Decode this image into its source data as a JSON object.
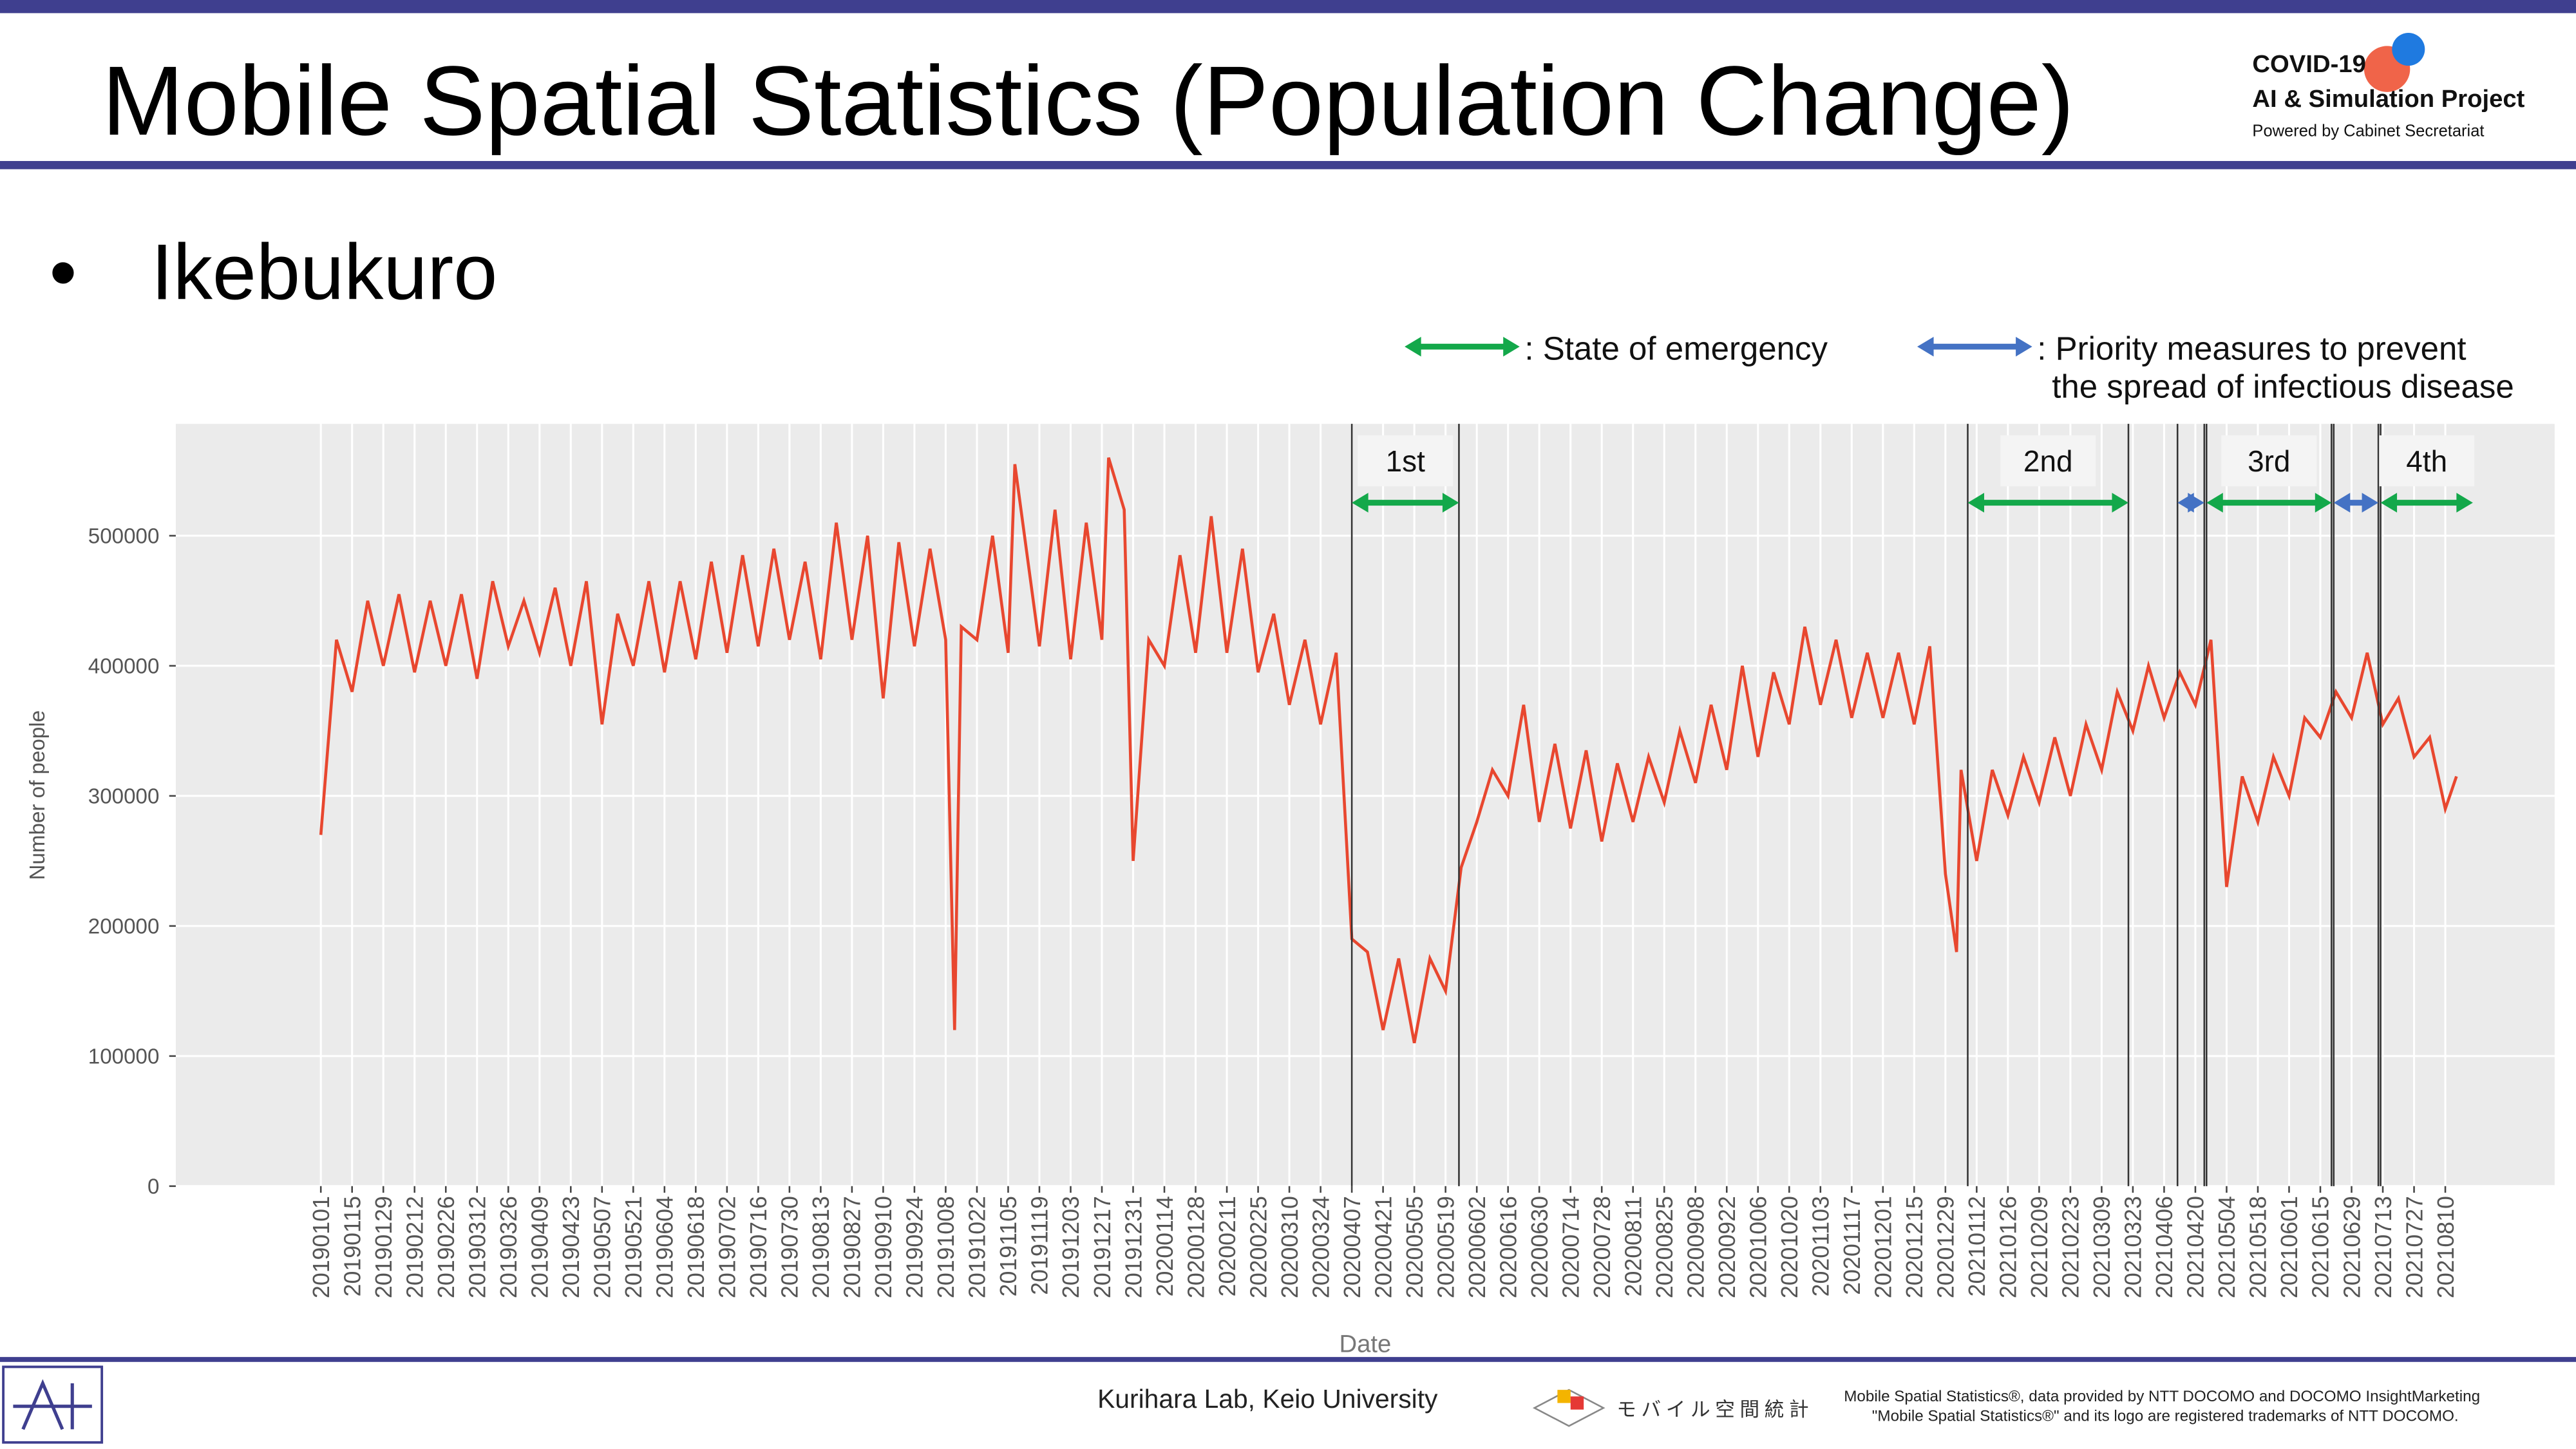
{
  "slide": {
    "title": "Mobile Spatial Statistics (Population Change)",
    "bullet": "Ikebukuro",
    "logo": {
      "line1": "COVID-19",
      "line2": "AI & Simulation Project",
      "line3": "Powered by Cabinet Secretariat"
    },
    "footer": {
      "lab": "Kurihara Lab, Keio University",
      "logo_text": "モバイル空間統計",
      "note1": "Mobile Spatial Statistics®, data provided by NTT DOCOMO and DOCOMO InsightMarketing",
      "note2": "\"Mobile Spatial Statistics®\" and its logo are registered trademarks of NTT DOCOMO."
    }
  },
  "chart_data": {
    "type": "line",
    "xlabel": "Date",
    "ylabel": "Number of people",
    "color": "#e8472f",
    "grid": true,
    "xlim": [
      "20181028",
      "20210928"
    ],
    "ylim": [
      0,
      586000
    ],
    "yticks": [
      0,
      100000,
      200000,
      300000,
      400000,
      500000
    ],
    "xticks": [
      "20190101",
      "20190115",
      "20190129",
      "20190212",
      "20190226",
      "20190312",
      "20190326",
      "20190409",
      "20190423",
      "20190507",
      "20190521",
      "20190604",
      "20190618",
      "20190702",
      "20190716",
      "20190730",
      "20190813",
      "20190827",
      "20190910",
      "20190924",
      "20191008",
      "20191022",
      "20191105",
      "20191119",
      "20191203",
      "20191217",
      "20191231",
      "20200114",
      "20200128",
      "20200211",
      "20200225",
      "20200310",
      "20200324",
      "20200407",
      "20200421",
      "20200505",
      "20200519",
      "20200602",
      "20200616",
      "20200630",
      "20200714",
      "20200728",
      "20200811",
      "20200825",
      "20200908",
      "20200922",
      "20201006",
      "20201020",
      "20201103",
      "20201117",
      "20201201",
      "20201215",
      "20201229",
      "20210112",
      "20210126",
      "20210209",
      "20210223",
      "20210309",
      "20210323",
      "20210406",
      "20210420",
      "20210504",
      "20210518",
      "20210601",
      "20210615",
      "20210629",
      "20210713",
      "20210727",
      "20210810"
    ],
    "x": [
      "20190101",
      "20190108",
      "20190115",
      "20190122",
      "20190129",
      "20190205",
      "20190212",
      "20190219",
      "20190226",
      "20190305",
      "20190312",
      "20190319",
      "20190326",
      "20190402",
      "20190409",
      "20190416",
      "20190423",
      "20190430",
      "20190507",
      "20190514",
      "20190521",
      "20190528",
      "20190604",
      "20190611",
      "20190618",
      "20190625",
      "20190702",
      "20190709",
      "20190716",
      "20190723",
      "20190730",
      "20190806",
      "20190813",
      "20190820",
      "20190827",
      "20190903",
      "20190910",
      "20190917",
      "20190924",
      "20191001",
      "20191008",
      "20191012",
      "20191015",
      "20191022",
      "20191029",
      "20191105",
      "20191108",
      "20191119",
      "20191126",
      "20191203",
      "20191210",
      "20191217",
      "20191220",
      "20191227",
      "20191231",
      "20200107",
      "20200114",
      "20200121",
      "20200128",
      "20200204",
      "20200211",
      "20200218",
      "20200225",
      "20200303",
      "20200310",
      "20200317",
      "20200324",
      "20200331",
      "20200407",
      "20200414",
      "20200421",
      "20200428",
      "20200505",
      "20200512",
      "20200519",
      "20200526",
      "20200602",
      "20200609",
      "20200616",
      "20200623",
      "20200630",
      "20200707",
      "20200714",
      "20200721",
      "20200728",
      "20200804",
      "20200811",
      "20200818",
      "20200825",
      "20200901",
      "20200908",
      "20200915",
      "20200922",
      "20200929",
      "20201006",
      "20201013",
      "20201020",
      "20201027",
      "20201103",
      "20201110",
      "20201117",
      "20201124",
      "20201201",
      "20201208",
      "20201215",
      "20201222",
      "20201229",
      "20210103",
      "20210105",
      "20210112",
      "20210119",
      "20210126",
      "20210202",
      "20210209",
      "20210216",
      "20210223",
      "20210302",
      "20210309",
      "20210316",
      "20210323",
      "20210330",
      "20210406",
      "20210413",
      "20210420",
      "20210427",
      "20210504",
      "20210511",
      "20210518",
      "20210525",
      "20210601",
      "20210608",
      "20210615",
      "20210622",
      "20210629",
      "20210706",
      "20210713",
      "20210720",
      "20210727",
      "20210803",
      "20210810",
      "20210815"
    ],
    "values": [
      270000,
      420000,
      380000,
      450000,
      400000,
      455000,
      395000,
      450000,
      400000,
      455000,
      390000,
      465000,
      415000,
      450000,
      410000,
      460000,
      400000,
      465000,
      355000,
      440000,
      400000,
      465000,
      395000,
      465000,
      405000,
      480000,
      410000,
      485000,
      415000,
      490000,
      420000,
      480000,
      405000,
      510000,
      420000,
      500000,
      375000,
      495000,
      415000,
      490000,
      420000,
      120000,
      430000,
      420000,
      500000,
      410000,
      555000,
      415000,
      520000,
      405000,
      510000,
      420000,
      560000,
      520000,
      250000,
      420000,
      400000,
      485000,
      410000,
      515000,
      410000,
      490000,
      395000,
      440000,
      370000,
      420000,
      355000,
      410000,
      190000,
      180000,
      120000,
      175000,
      110000,
      175000,
      150000,
      245000,
      280000,
      320000,
      300000,
      370000,
      280000,
      340000,
      275000,
      335000,
      265000,
      325000,
      280000,
      330000,
      295000,
      350000,
      310000,
      370000,
      320000,
      400000,
      330000,
      395000,
      355000,
      430000,
      370000,
      420000,
      360000,
      410000,
      360000,
      410000,
      355000,
      415000,
      240000,
      180000,
      320000,
      250000,
      320000,
      285000,
      330000,
      295000,
      345000,
      300000,
      355000,
      320000,
      380000,
      350000,
      400000,
      360000,
      395000,
      370000,
      420000,
      230000,
      315000,
      280000,
      330000,
      300000,
      360000,
      345000,
      380000,
      360000,
      410000,
      355000,
      375000,
      330000,
      345000,
      290000,
      315000
    ],
    "legend": [
      {
        "color": "#13a84a",
        "text": [
          ": State of emergency"
        ]
      },
      {
        "color": "#4472c4",
        "text": [
          ": Priority measures to prevent",
          "the spread of infectious disease"
        ]
      }
    ],
    "periods": [
      {
        "start": "20200407",
        "end": "20200525",
        "kind": 0,
        "label": "1st"
      },
      {
        "start": "20210108",
        "end": "20210321",
        "kind": 0,
        "label": "2nd"
      },
      {
        "start": "20210412",
        "end": "20210424",
        "kind": 1
      },
      {
        "start": "20210425",
        "end": "20210620",
        "kind": 0,
        "label": "3rd"
      },
      {
        "start": "20210621",
        "end": "20210711",
        "kind": 1
      },
      {
        "start": "20210712",
        "end": null,
        "kind": 0,
        "label": "4th"
      }
    ]
  }
}
